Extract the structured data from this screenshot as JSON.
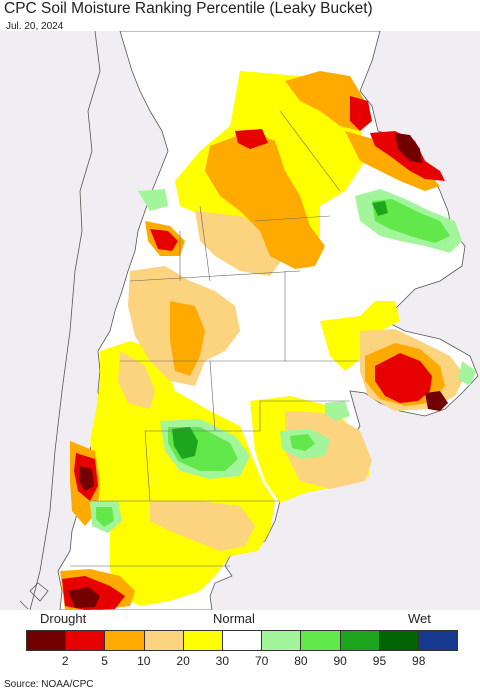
{
  "header": {
    "title": "CPC Soil Moisture Ranking Percentile (Leaky Bucket)",
    "date": "Jul. 20, 2024"
  },
  "legend": {
    "left_label": "Drought",
    "center_label": "Normal",
    "right_label": "Wet",
    "ticks": [
      "2",
      "5",
      "10",
      "20",
      "30",
      "70",
      "80",
      "90",
      "95",
      "98"
    ],
    "colors": [
      "#730000",
      "#e60000",
      "#ffaa00",
      "#fcd37f",
      "#ffff00",
      "#ffffff",
      "#a3f59c",
      "#63e84c",
      "#1ea51e",
      "#006400",
      "#16398f"
    ]
  },
  "source": "Source: NOAA/CPC",
  "map": {
    "land_color": "#ffffff",
    "outside_color": "#f0eef2",
    "border_color": "#555555"
  }
}
